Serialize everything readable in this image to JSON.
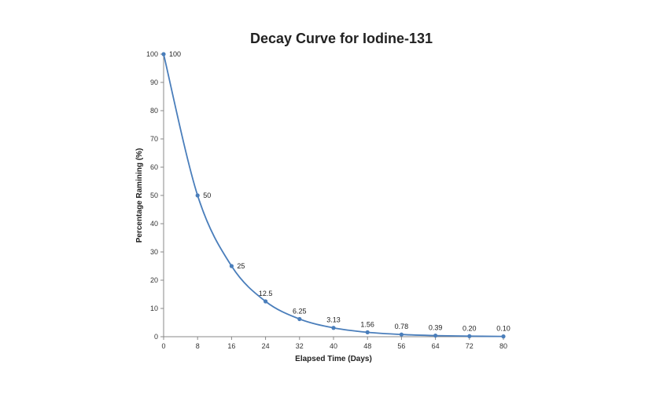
{
  "chart_data": {
    "type": "line",
    "title": "Decay Curve for Iodine-131",
    "xlabel": "Elapsed Time (Days)",
    "ylabel": "Percentage Ramining (%)",
    "xlim": [
      0,
      80
    ],
    "ylim": [
      0,
      100
    ],
    "x_ticks": [
      "0",
      "8",
      "16",
      "24",
      "32",
      "40",
      "48",
      "56",
      "64",
      "72",
      "80"
    ],
    "y_ticks": [
      "0",
      "10",
      "20",
      "30",
      "40",
      "50",
      "60",
      "70",
      "80",
      "90",
      "100"
    ],
    "x": [
      0,
      8,
      16,
      24,
      32,
      40,
      48,
      56,
      64,
      72,
      80
    ],
    "y": [
      100,
      50,
      25,
      12.5,
      6.25,
      3.13,
      1.56,
      0.78,
      0.39,
      0.2,
      0.1
    ],
    "data_labels": [
      "100",
      "50",
      "25",
      "12.5",
      "6.25",
      "3.13",
      "1.56",
      "0.78",
      "0.39",
      "0.20",
      "0.10"
    ],
    "grid": false,
    "legend": "none",
    "line_color": "#4a7ebb",
    "marker_color": "#4a7ebb"
  }
}
